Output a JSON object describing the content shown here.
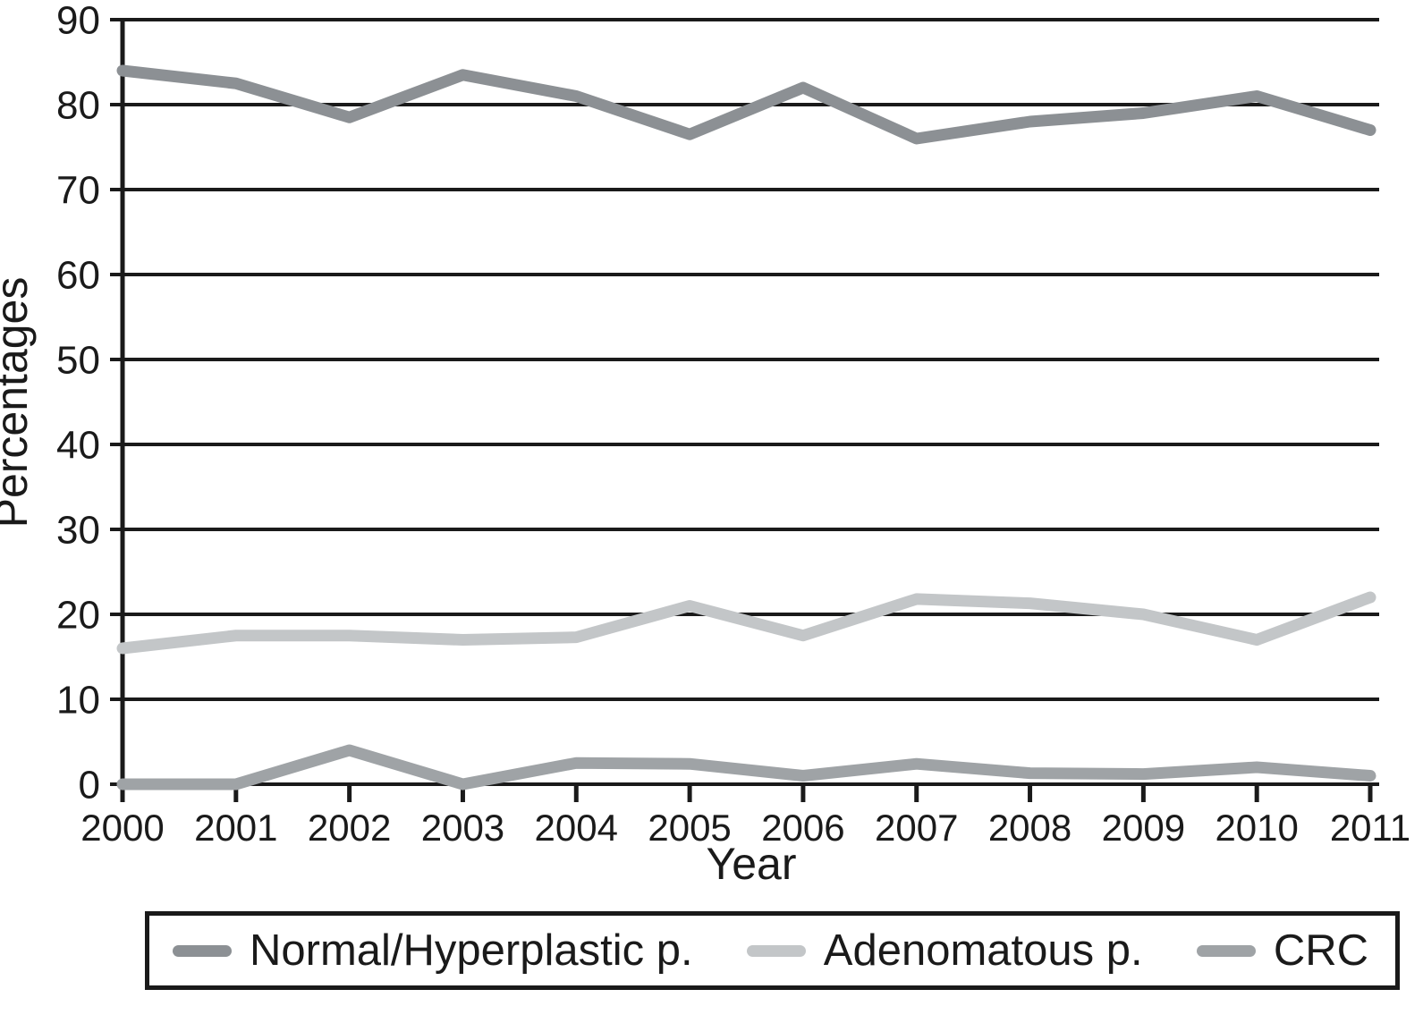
{
  "chart_data": {
    "type": "line",
    "title": "",
    "xlabel": "Year",
    "ylabel": "Percentages",
    "x": [
      2000,
      2001,
      2002,
      2003,
      2004,
      2005,
      2006,
      2007,
      2008,
      2009,
      2010,
      2011
    ],
    "ylim": [
      0,
      90
    ],
    "yticks": [
      0,
      10,
      20,
      30,
      40,
      50,
      60,
      70,
      80,
      90
    ],
    "grid": "horizontal",
    "legend_position": "bottom-box",
    "axis_color": "#1a1a1a",
    "series": [
      {
        "name": "Normal/Hyperplastic p.",
        "color": "#8c9094",
        "values": [
          84,
          82.5,
          78.5,
          83.5,
          81,
          76.5,
          82,
          76,
          78,
          79,
          81,
          77
        ]
      },
      {
        "name": "Adenomatous p.",
        "color": "#c3c6c8",
        "values": [
          16,
          17.5,
          17.5,
          17,
          17.3,
          21,
          17.5,
          21.8,
          21.3,
          20,
          17,
          22
        ]
      },
      {
        "name": "CRC",
        "color": "#9fa3a6",
        "values": [
          0,
          0,
          4,
          0,
          2.5,
          2.4,
          1,
          2.4,
          1.3,
          1.2,
          2,
          1
        ]
      }
    ]
  }
}
